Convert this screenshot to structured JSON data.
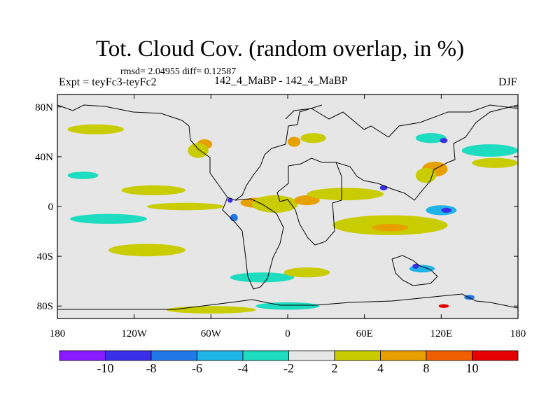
{
  "title": "Tot. Cloud Cov. (random overlap, in %)",
  "stats_line": "rmsd= 2.04955 diff= 0.12587",
  "experiment": "Expt = teyFc3-teyFc2",
  "subtitle": "142_4_MaBP - 142_4_MaBP",
  "season": "DJF",
  "chart_data": {
    "type": "heatmap",
    "projection": "cylindrical-equidistant",
    "x_range": [
      -180,
      180
    ],
    "y_range": [
      -90,
      90
    ],
    "x_ticks": [
      {
        "value": -180,
        "label": "180"
      },
      {
        "value": -120,
        "label": "120W"
      },
      {
        "value": -60,
        "label": "60W"
      },
      {
        "value": 0,
        "label": "0"
      },
      {
        "value": 60,
        "label": "60E"
      },
      {
        "value": 120,
        "label": "120E"
      },
      {
        "value": 180,
        "label": "180"
      }
    ],
    "y_ticks": [
      {
        "value": 80,
        "label": "80N"
      },
      {
        "value": 40,
        "label": "40N"
      },
      {
        "value": 0,
        "label": "0"
      },
      {
        "value": -40,
        "label": "40S"
      },
      {
        "value": -80,
        "label": "80S"
      }
    ],
    "colorbar": {
      "bins": [
        {
          "color": "#8a1aff"
        },
        {
          "color": "#3a2ee8"
        },
        {
          "color": "#1f78e6"
        },
        {
          "color": "#1fb4e8"
        },
        {
          "color": "#1edcc0"
        },
        {
          "color": "#e6e6e6"
        },
        {
          "color": "#c8cc00"
        },
        {
          "color": "#e8a000"
        },
        {
          "color": "#f06000"
        },
        {
          "color": "#e60000"
        }
      ],
      "boundary_labels": [
        {
          "boundary": 1,
          "label": "-10"
        },
        {
          "boundary": 2,
          "label": "-8"
        },
        {
          "boundary": 3,
          "label": "-6"
        },
        {
          "boundary": 4,
          "label": "-4"
        },
        {
          "boundary": 5,
          "label": "-2"
        },
        {
          "boundary": 6,
          "label": "2"
        },
        {
          "boundary": 7,
          "label": "4"
        },
        {
          "boundary": 8,
          "label": "8"
        },
        {
          "boundary": 9,
          "label": "10"
        }
      ]
    },
    "background_value": 0,
    "anomaly_regions": [
      {
        "name": "pacific-n-band",
        "lon": -150,
        "lat": 62,
        "rlon": 22,
        "rlat": 4,
        "value": 3
      },
      {
        "name": "pacific-s-band",
        "lon": -140,
        "lat": -10,
        "rlon": 30,
        "rlat": 4,
        "value": -3
      },
      {
        "name": "pacific-s-band-2",
        "lon": -110,
        "lat": -35,
        "rlon": 30,
        "rlat": 5,
        "value": 2.5
      },
      {
        "name": "pacific-s-cyan",
        "lon": -160,
        "lat": 25,
        "rlon": 12,
        "rlat": 3,
        "value": -3
      },
      {
        "name": "pacific-eq-yellow",
        "lon": -105,
        "lat": 13,
        "rlon": 25,
        "rlat": 4,
        "value": 2.5
      },
      {
        "name": "pacific-eq-yellow-2",
        "lon": -80,
        "lat": 0,
        "rlon": 30,
        "rlat": 3,
        "value": 2.5
      },
      {
        "name": "atl-eq-orange",
        "lon": -25,
        "lat": 3,
        "rlon": 12,
        "rlat": 4,
        "value": 5
      },
      {
        "name": "atl-eq-yellow",
        "lon": -10,
        "lat": 2,
        "rlon": 18,
        "rlat": 7,
        "value": 3
      },
      {
        "name": "africa-eq-orange",
        "lon": 15,
        "lat": 5,
        "rlon": 10,
        "rlat": 4,
        "value": 5
      },
      {
        "name": "indian-band-yellow",
        "lon": 45,
        "lat": 10,
        "rlon": 30,
        "rlat": 5,
        "value": 3
      },
      {
        "name": "indian-s-band",
        "lon": 80,
        "lat": -15,
        "rlon": 45,
        "rlat": 8,
        "value": 3
      },
      {
        "name": "indian-s-orange",
        "lon": 80,
        "lat": -17,
        "rlon": 14,
        "rlat": 3,
        "value": 6
      },
      {
        "name": "w-pacific-blue",
        "lon": 120,
        "lat": -3,
        "rlon": 12,
        "rlat": 4,
        "value": -5
      },
      {
        "name": "w-pacific-deep",
        "lon": 124,
        "lat": -3,
        "rlon": 4,
        "rlat": 2,
        "value": -8
      },
      {
        "name": "n-pacific-cyan",
        "lon": 158,
        "lat": 45,
        "rlon": 22,
        "rlat": 5,
        "value": -3
      },
      {
        "name": "n-pacific-yellow",
        "lon": 162,
        "lat": 35,
        "rlon": 18,
        "rlat": 4,
        "value": 3
      },
      {
        "name": "e-asia-orange",
        "lon": 115,
        "lat": 30,
        "rlon": 10,
        "rlat": 6,
        "value": 5
      },
      {
        "name": "e-asia-yellow",
        "lon": 108,
        "lat": 25,
        "rlon": 8,
        "rlat": 6,
        "value": 3
      },
      {
        "name": "siberia-cyan",
        "lon": 112,
        "lat": 55,
        "rlon": 12,
        "rlat": 4,
        "value": -3
      },
      {
        "name": "siberia-deep",
        "lon": 122,
        "lat": 53,
        "rlon": 3,
        "rlat": 2,
        "value": -8
      },
      {
        "name": "n-atl-orange",
        "lon": -65,
        "lat": 50,
        "rlon": 6,
        "rlat": 4,
        "value": 5
      },
      {
        "name": "n-america-yellow",
        "lon": -70,
        "lat": 45,
        "rlon": 8,
        "rlat": 6,
        "value": 3
      },
      {
        "name": "europe-orange",
        "lon": 5,
        "lat": 52,
        "rlon": 5,
        "rlat": 4,
        "value": 5
      },
      {
        "name": "europe-yellow",
        "lon": 20,
        "lat": 55,
        "rlon": 10,
        "rlat": 4,
        "value": 3
      },
      {
        "name": "se-asia-deep",
        "lon": 75,
        "lat": 15,
        "rlon": 3,
        "rlat": 2,
        "value": -8
      },
      {
        "name": "s-ocean-cyan",
        "lon": -20,
        "lat": -57,
        "rlon": 25,
        "rlat": 4,
        "value": -3
      },
      {
        "name": "s-ocean-yellow",
        "lon": 15,
        "lat": -53,
        "rlon": 18,
        "rlat": 4,
        "value": 3
      },
      {
        "name": "s-ocean-yellow-2",
        "lon": -60,
        "lat": -83,
        "rlon": 35,
        "rlat": 3,
        "value": 3
      },
      {
        "name": "antarctic-cyan",
        "lon": 0,
        "lat": -80,
        "rlon": 25,
        "rlat": 3,
        "value": -3
      },
      {
        "name": "antarctic-red",
        "lon": 122,
        "lat": -80,
        "rlon": 4,
        "rlat": 1.5,
        "value": 10
      },
      {
        "name": "antarctic-blue",
        "lon": 142,
        "lat": -73,
        "rlon": 4,
        "rlat": 2,
        "value": -7
      },
      {
        "name": "s-atl-blue",
        "lon": -42,
        "lat": -9,
        "rlon": 3,
        "rlat": 3,
        "value": -7
      },
      {
        "name": "s-am-deep",
        "lon": -45,
        "lat": 5,
        "rlon": 2,
        "rlat": 2,
        "value": -8
      },
      {
        "name": "indian-s-cyan",
        "lon": 105,
        "lat": -50,
        "rlon": 10,
        "rlat": 3,
        "value": -4
      },
      {
        "name": "indian-s-deep",
        "lon": 100,
        "lat": -48,
        "rlon": 2.5,
        "rlat": 2,
        "value": -8
      }
    ]
  }
}
